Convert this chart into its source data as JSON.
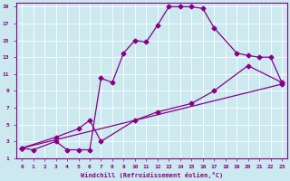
{
  "xlabel": "Windchill (Refroidissement éolien,°C)",
  "background_color": "#cbe9ee",
  "line_color": "#880088",
  "xlim": [
    -0.5,
    23.5
  ],
  "ylim": [
    1,
    19.5
  ],
  "xticks": [
    0,
    1,
    2,
    3,
    4,
    5,
    6,
    7,
    8,
    9,
    10,
    11,
    12,
    13,
    14,
    15,
    16,
    17,
    18,
    19,
    20,
    21,
    22,
    23
  ],
  "yticks": [
    1,
    3,
    5,
    7,
    9,
    11,
    13,
    15,
    17,
    19
  ],
  "line1_x": [
    0,
    1,
    3,
    4,
    5,
    6,
    7,
    8,
    9,
    10,
    11,
    12,
    13,
    14,
    15,
    16,
    17,
    19,
    20,
    21,
    22,
    23
  ],
  "line1_y": [
    2.2,
    2.0,
    3.0,
    2.0,
    2.0,
    2.0,
    10.5,
    10.0,
    13.5,
    15.0,
    14.8,
    16.8,
    19.0,
    19.0,
    19.0,
    18.8,
    16.5,
    13.5,
    13.2,
    13.0,
    13.0,
    10.0
  ],
  "line2_x": [
    0,
    3,
    5,
    6,
    7,
    10,
    12,
    15,
    17,
    20,
    23
  ],
  "line2_y": [
    2.2,
    3.5,
    4.5,
    5.5,
    3.0,
    5.5,
    6.5,
    7.5,
    9.0,
    12.0,
    10.0
  ],
  "line3_x": [
    0,
    23
  ],
  "line3_y": [
    2.2,
    9.8
  ],
  "marker": "D",
  "markersize": 2.5,
  "linewidth": 0.9
}
